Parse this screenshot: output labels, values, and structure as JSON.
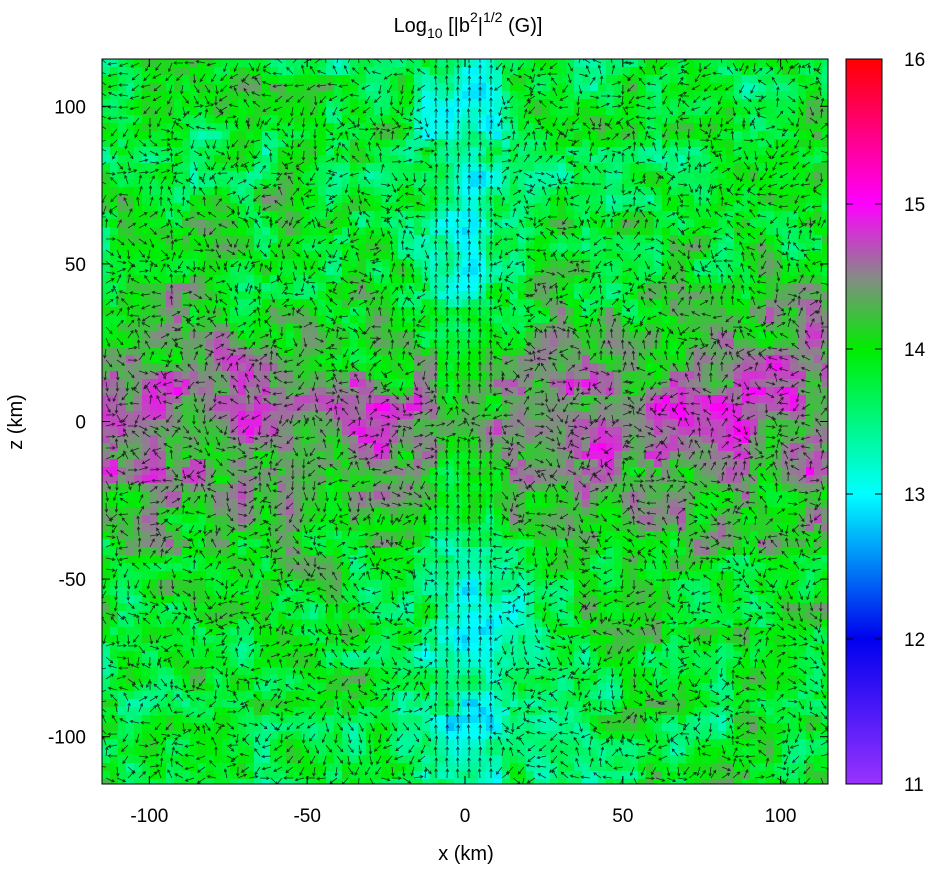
{
  "chart_data": {
    "type": "heatmap",
    "title": {
      "prefix": "Log",
      "subscript": "10",
      "open": " [|b",
      "sup1": "2",
      "mid": "|",
      "sup2": "1/2",
      "suffix": " (G)]"
    },
    "xlabel": "x (km)",
    "ylabel": "z (km)",
    "xlim": [
      -115,
      115
    ],
    "ylim": [
      -115,
      115
    ],
    "xticks": [
      {
        "value": -100,
        "label": "-100"
      },
      {
        "value": -50,
        "label": "-50"
      },
      {
        "value": 0,
        "label": "0"
      },
      {
        "value": 50,
        "label": "50"
      },
      {
        "value": 100,
        "label": "100"
      }
    ],
    "yticks": [
      {
        "value": 100,
        "label": "100"
      },
      {
        "value": 50,
        "label": "50"
      },
      {
        "value": 0,
        "label": "0"
      },
      {
        "value": -50,
        "label": "-50"
      },
      {
        "value": -100,
        "label": "-100"
      }
    ],
    "colorbar": {
      "min": 11,
      "max": 16,
      "ticks": [
        {
          "value": 16,
          "label": "16"
        },
        {
          "value": 15,
          "label": "15"
        },
        {
          "value": 14,
          "label": "14"
        },
        {
          "value": 13,
          "label": "13"
        },
        {
          "value": 12,
          "label": "12"
        },
        {
          "value": 11,
          "label": "11"
        }
      ],
      "colors": [
        {
          "value": 11.0,
          "color": "#9933ff"
        },
        {
          "value": 12.0,
          "color": "#0000ee"
        },
        {
          "value": 13.0,
          "color": "#00ffff"
        },
        {
          "value": 14.0,
          "color": "#00ee00"
        },
        {
          "value": 14.5,
          "color": "#888888"
        },
        {
          "value": 15.0,
          "color": "#ff00ff"
        },
        {
          "value": 16.0,
          "color": "#ff0000"
        }
      ]
    },
    "field_overlay": "black arrows (magnetic field direction)"
  }
}
